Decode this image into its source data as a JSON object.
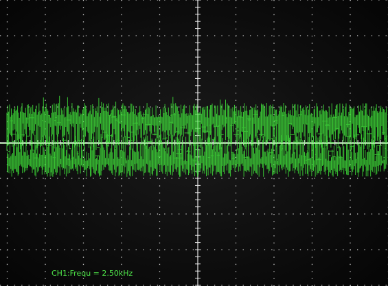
{
  "readout": {
    "measurement": "CH1:Frequ = 2.50kHz"
  }
}
